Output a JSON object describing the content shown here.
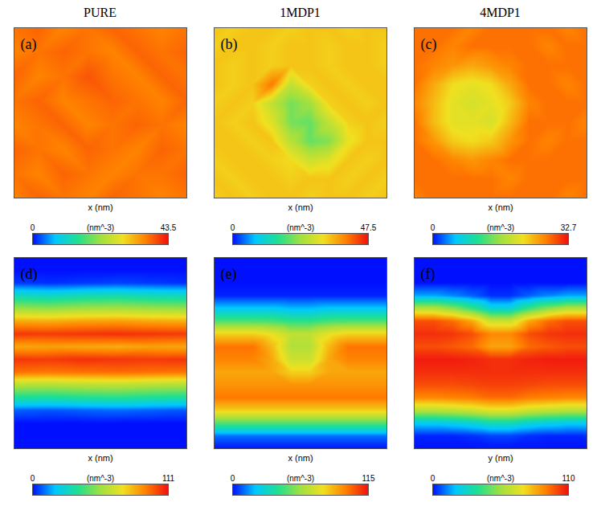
{
  "column_titles": [
    "PURE",
    "1MDP1",
    "4MDP1"
  ],
  "chart_data": [
    {
      "type": "heatmap",
      "label": "(a)",
      "x_label": "x (nm)",
      "tick_labels": false,
      "values": [
        [
          37,
          38,
          36,
          37,
          38,
          37,
          36,
          37
        ],
        [
          36,
          37,
          38,
          37,
          36,
          38,
          37,
          38
        ],
        [
          38,
          36,
          37,
          39,
          37,
          36,
          38,
          37
        ],
        [
          37,
          38,
          36,
          37,
          38,
          37,
          36,
          38
        ],
        [
          36,
          37,
          38,
          36,
          37,
          38,
          37,
          36
        ],
        [
          38,
          37,
          36,
          38,
          37,
          36,
          38,
          37
        ],
        [
          37,
          36,
          38,
          37,
          36,
          37,
          37,
          38
        ],
        [
          36,
          38,
          37,
          36,
          38,
          37,
          36,
          37
        ]
      ],
      "colorbar": {
        "range": [
          0,
          43.5
        ],
        "ticks": [
          0,
          43.5
        ],
        "label": "(nm^-3)"
      }
    },
    {
      "type": "heatmap",
      "label": "(b)",
      "x_label": "x (nm)",
      "tick_labels": false,
      "values": [
        [
          34,
          33,
          34,
          34,
          33,
          34,
          34,
          33,
          34,
          34
        ],
        [
          33,
          34,
          34,
          33,
          34,
          34,
          33,
          34,
          34,
          33
        ],
        [
          34,
          33,
          34,
          33,
          34,
          34,
          33,
          34,
          34,
          33
        ],
        [
          34,
          33,
          34,
          40,
          27,
          33,
          34,
          33,
          34,
          34
        ],
        [
          33,
          34,
          33,
          27,
          21,
          24,
          33,
          34,
          33,
          34
        ],
        [
          34,
          33,
          34,
          30,
          21,
          20,
          27,
          33,
          34,
          33
        ],
        [
          34,
          34,
          33,
          34,
          26,
          20,
          22,
          31,
          34,
          34
        ],
        [
          33,
          34,
          34,
          33,
          32,
          28,
          30,
          34,
          33,
          34
        ],
        [
          34,
          33,
          34,
          34,
          33,
          34,
          34,
          33,
          34,
          33
        ],
        [
          33,
          34,
          33,
          34,
          34,
          33,
          34,
          34,
          33,
          34
        ]
      ],
      "colorbar": {
        "range": [
          0,
          47.5
        ],
        "ticks": [
          0,
          47.5
        ],
        "label": "(nm^-3)"
      }
    },
    {
      "type": "heatmap",
      "label": "(c)",
      "x_label": "x (nm)",
      "tick_labels": false,
      "values": [
        [
          28,
          28,
          28,
          27,
          28,
          28,
          28,
          28,
          27,
          28
        ],
        [
          28,
          28,
          27,
          28,
          28,
          28,
          28,
          27,
          28,
          28
        ],
        [
          28,
          27,
          26,
          25,
          26,
          27,
          28,
          28,
          28,
          28
        ],
        [
          28,
          25,
          22,
          21,
          22,
          25,
          28,
          28,
          27,
          28
        ],
        [
          27,
          24,
          21,
          20,
          21,
          23,
          27,
          28,
          28,
          28
        ],
        [
          28,
          24,
          21,
          21,
          20,
          24,
          28,
          28,
          28,
          27
        ],
        [
          28,
          26,
          23,
          22,
          23,
          26,
          28,
          27,
          28,
          28
        ],
        [
          28,
          28,
          27,
          26,
          27,
          28,
          28,
          28,
          28,
          28
        ],
        [
          28,
          28,
          28,
          28,
          28,
          27,
          28,
          28,
          28,
          28
        ],
        [
          27,
          28,
          28,
          28,
          28,
          28,
          28,
          28,
          27,
          28
        ]
      ],
      "colorbar": {
        "range": [
          0,
          32.7
        ],
        "ticks": [
          0,
          32.7
        ],
        "label": "(nm^-3)"
      }
    },
    {
      "type": "heatmap",
      "label": "(d)",
      "x_label": "x (nm)",
      "tick_labels": false,
      "values": [
        [
          0,
          0,
          0,
          0,
          0,
          0
        ],
        [
          0,
          0,
          0,
          0,
          0,
          0
        ],
        [
          4,
          3,
          4,
          5,
          4,
          3
        ],
        [
          30,
          28,
          31,
          32,
          30,
          29
        ],
        [
          55,
          53,
          56,
          57,
          55,
          54
        ],
        [
          85,
          84,
          86,
          87,
          85,
          84
        ],
        [
          105,
          104,
          105,
          106,
          105,
          104
        ],
        [
          85,
          86,
          85,
          84,
          86,
          85
        ],
        [
          105,
          104,
          106,
          105,
          104,
          105
        ],
        [
          95,
          94,
          95,
          96,
          95,
          94
        ],
        [
          60,
          59,
          61,
          62,
          60,
          59
        ],
        [
          35,
          34,
          36,
          37,
          35,
          34
        ],
        [
          8,
          7,
          8,
          9,
          8,
          7
        ],
        [
          0,
          0,
          0,
          0,
          0,
          0
        ],
        [
          0,
          0,
          0,
          0,
          0,
          0
        ],
        [
          0,
          0,
          0,
          0,
          0,
          0
        ]
      ],
      "colorbar": {
        "range": [
          0,
          111
        ],
        "ticks": [
          0,
          111
        ],
        "label": "(nm^-3)"
      }
    },
    {
      "type": "heatmap",
      "label": "(e)",
      "x_label": "x (nm)",
      "tick_labels": false,
      "values": [
        [
          0,
          0,
          0,
          0,
          0,
          0,
          0,
          0,
          0,
          0
        ],
        [
          0,
          0,
          0,
          0,
          0,
          0,
          0,
          0,
          0,
          0
        ],
        [
          0,
          0,
          0,
          0,
          0,
          0,
          0,
          0,
          0,
          0
        ],
        [
          2,
          2,
          2,
          2,
          2,
          2,
          2,
          2,
          2,
          2
        ],
        [
          20,
          20,
          20,
          20,
          18,
          18,
          20,
          20,
          20,
          20
        ],
        [
          45,
          45,
          45,
          44,
          40,
          40,
          44,
          45,
          45,
          45
        ],
        [
          80,
          80,
          80,
          75,
          65,
          65,
          75,
          80,
          80,
          80
        ],
        [
          98,
          98,
          98,
          85,
          62,
          62,
          85,
          98,
          98,
          98
        ],
        [
          95,
          95,
          95,
          88,
          68,
          68,
          88,
          95,
          95,
          95
        ],
        [
          88,
          88,
          88,
          88,
          80,
          80,
          88,
          88,
          88,
          88
        ],
        [
          92,
          92,
          92,
          92,
          92,
          92,
          92,
          92,
          92,
          92
        ],
        [
          97,
          97,
          97,
          97,
          97,
          97,
          97,
          97,
          97,
          97
        ],
        [
          80,
          80,
          80,
          80,
          80,
          80,
          80,
          80,
          80,
          80
        ],
        [
          45,
          45,
          45,
          45,
          45,
          45,
          45,
          45,
          45,
          45
        ],
        [
          10,
          10,
          10,
          10,
          10,
          10,
          10,
          10,
          10,
          10
        ],
        [
          0,
          0,
          0,
          0,
          0,
          0,
          0,
          0,
          0,
          0
        ]
      ],
      "colorbar": {
        "range": [
          0,
          115
        ],
        "ticks": [
          0,
          115
        ],
        "label": "(nm^-3)"
      }
    },
    {
      "type": "heatmap",
      "label": "(f)",
      "x_label": "y (nm)",
      "tick_labels": false,
      "values": [
        [
          0,
          0,
          0,
          0,
          0,
          0,
          0,
          0,
          0,
          0
        ],
        [
          0,
          0,
          0,
          0,
          0,
          0,
          0,
          0,
          0,
          0
        ],
        [
          0,
          0,
          0,
          0,
          0,
          0,
          0,
          0,
          0,
          0
        ],
        [
          15,
          15,
          12,
          8,
          3,
          3,
          8,
          12,
          15,
          15
        ],
        [
          60,
          60,
          52,
          40,
          25,
          25,
          40,
          52,
          60,
          60
        ],
        [
          100,
          100,
          95,
          85,
          65,
          65,
          85,
          95,
          100,
          100
        ],
        [
          105,
          105,
          104,
          100,
          90,
          90,
          100,
          104,
          105,
          105
        ],
        [
          100,
          100,
          98,
          95,
          85,
          85,
          95,
          98,
          100,
          100
        ],
        [
          108,
          108,
          108,
          107,
          105,
          105,
          107,
          108,
          108,
          108
        ],
        [
          105,
          105,
          105,
          105,
          105,
          105,
          105,
          105,
          105,
          105
        ],
        [
          100,
          100,
          100,
          101,
          102,
          102,
          101,
          100,
          100,
          100
        ],
        [
          90,
          90,
          91,
          92,
          95,
          95,
          92,
          91,
          90,
          90
        ],
        [
          60,
          60,
          62,
          65,
          70,
          70,
          65,
          62,
          60,
          60
        ],
        [
          20,
          20,
          22,
          25,
          30,
          30,
          25,
          22,
          20,
          20
        ],
        [
          2,
          2,
          2,
          3,
          5,
          5,
          3,
          2,
          2,
          2
        ],
        [
          0,
          0,
          0,
          0,
          0,
          0,
          0,
          0,
          0,
          0
        ]
      ],
      "colorbar": {
        "range": [
          0,
          110
        ],
        "ticks": [
          0,
          110
        ],
        "label": "(nm^-3)"
      }
    }
  ]
}
